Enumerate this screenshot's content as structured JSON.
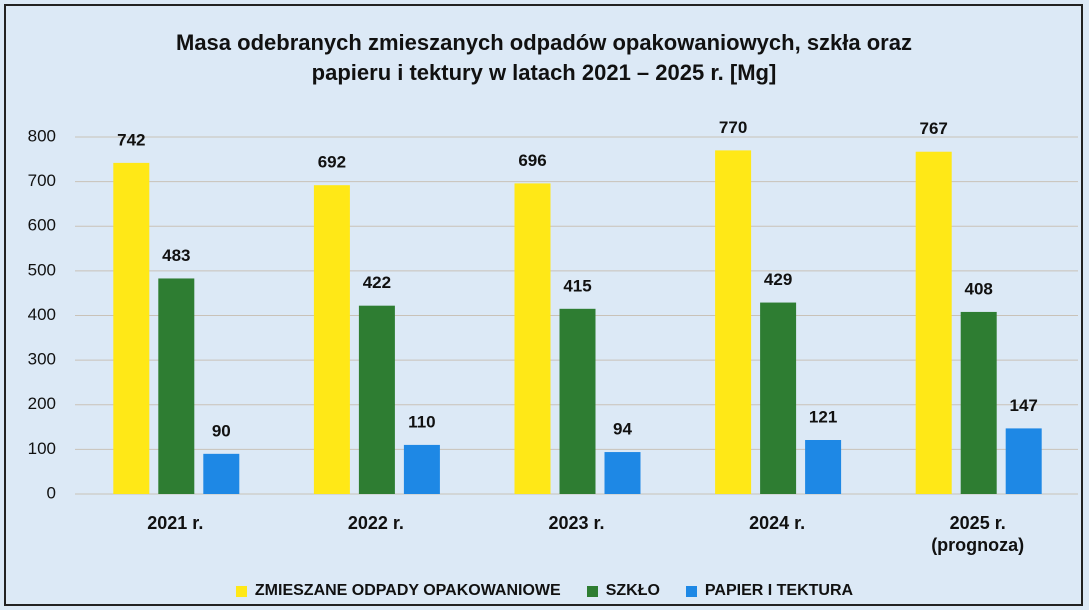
{
  "chart_data": {
    "type": "bar",
    "title": "Masa odebranych zmieszanych odpadów opakowaniowych, szkła oraz papieru i tektury w latach 2021 – 2025 r. [Mg]",
    "categories": [
      "2021 r.",
      "2022 r.",
      "2023 r.",
      "2024 r.",
      "2025 r. (prognoza)"
    ],
    "series": [
      {
        "name": "ZMIESZANE ODPADY OPAKOWANIOWE",
        "color": "#ffe817",
        "values": [
          742,
          692,
          696,
          770,
          767
        ]
      },
      {
        "name": "SZKŁO",
        "color": "#2e7d32",
        "values": [
          483,
          422,
          415,
          429,
          408
        ]
      },
      {
        "name": "PAPIER I TEKTURA",
        "color": "#1e88e5",
        "values": [
          90,
          110,
          94,
          121,
          147
        ]
      }
    ],
    "ylim": [
      0,
      800
    ],
    "yticks": [
      0,
      100,
      200,
      300,
      400,
      500,
      600,
      700,
      800
    ],
    "grid": true,
    "legend": "bottom"
  }
}
